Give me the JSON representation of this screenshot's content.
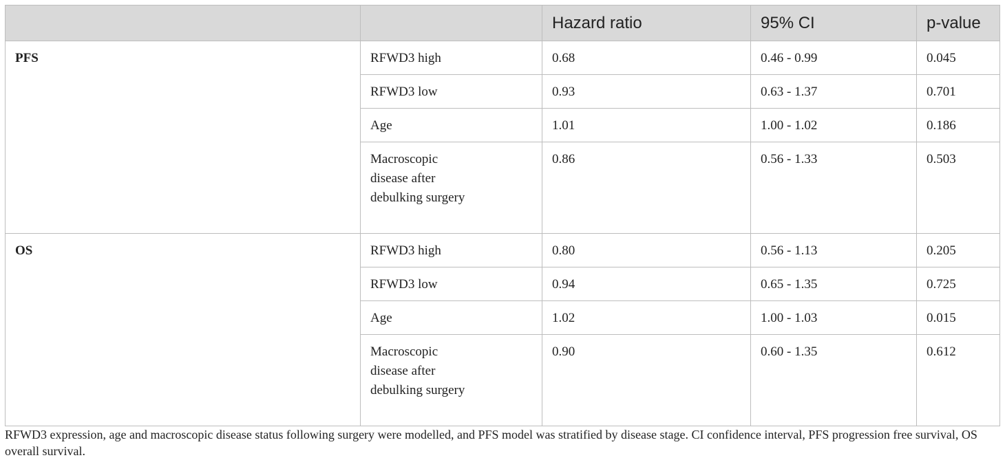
{
  "table": {
    "headers": [
      "",
      "",
      "Hazard ratio",
      "95% CI",
      "p-value"
    ],
    "groups": [
      {
        "label": "PFS",
        "rows": [
          {
            "variable": "RFWD3 high",
            "hr": "0.68",
            "ci": "0.46 - 0.99",
            "p": "0.045"
          },
          {
            "variable": "RFWD3 low",
            "hr": "0.93",
            "ci": "0.63 - 1.37",
            "p": "0.701"
          },
          {
            "variable": "Age",
            "hr": "1.01",
            "ci": "1.00 - 1.02",
            "p": "0.186"
          },
          {
            "variable": "Macroscopic disease after debulking surgery",
            "hr": "0.86",
            "ci": "0.56 - 1.33",
            "p": "0.503"
          }
        ]
      },
      {
        "label": "OS",
        "rows": [
          {
            "variable": "RFWD3 high",
            "hr": "0.80",
            "ci": "0.56 - 1.13",
            "p": "0.205"
          },
          {
            "variable": "RFWD3 low",
            "hr": "0.94",
            "ci": "0.65 - 1.35",
            "p": "0.725"
          },
          {
            "variable": "Age",
            "hr": "1.02",
            "ci": "1.00 - 1.03",
            "p": "0.015"
          },
          {
            "variable": "Macroscopic disease after debulking surgery",
            "hr": "0.90",
            "ci": "0.60 - 1.35",
            "p": "0.612"
          }
        ]
      }
    ]
  },
  "footnote": "RFWD3 expression, age and macroscopic disease status following surgery were modelled, and PFS model was stratified by disease stage. CI confidence interval, PFS progression free survival, OS overall survival."
}
